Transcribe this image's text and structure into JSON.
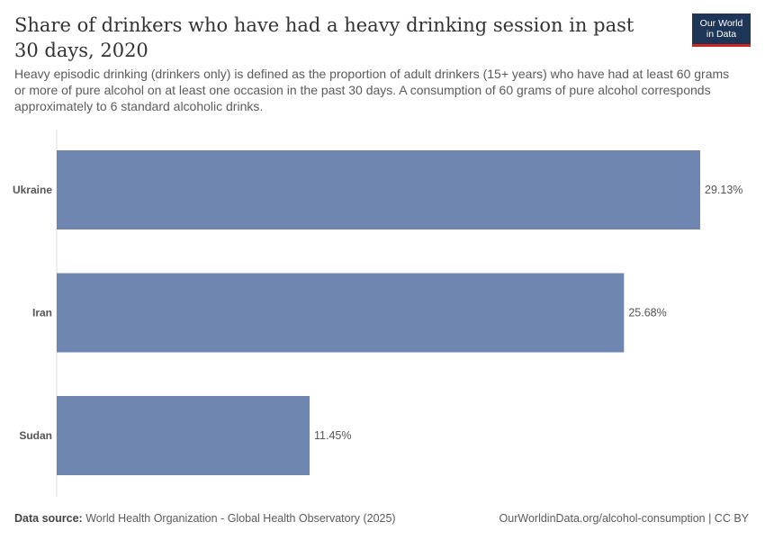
{
  "header": {
    "title": "Share of drinkers who have had a heavy drinking session in past 30 days, 2020",
    "subtitle": "Heavy episodic drinking (drinkers only) is defined as the proportion of adult drinkers (15+ years) who have had at least 60 grams or more of pure alcohol on at least one occasion in the past 30 days. A consumption of 60 grams of pure alcohol corresponds approximately to 6 standard alcoholic drinks.",
    "logo_line1": "Our World",
    "logo_line2": "in Data"
  },
  "footer": {
    "source_label": "Data source:",
    "source_text": "World Health Organization - Global Health Observatory (2025)",
    "url_text": "OurWorldinData.org/alcohol-consumption | CC BY"
  },
  "colors": {
    "bar": "#6f87b0",
    "axis": "#dddddd",
    "logo_bg": "#1d3557",
    "logo_accent": "#ce261e"
  },
  "chart_data": {
    "type": "bar",
    "orientation": "horizontal",
    "categories": [
      "Ukraine",
      "Iran",
      "Sudan"
    ],
    "values": [
      29.13,
      25.68,
      11.45
    ],
    "value_labels": [
      "29.13%",
      "25.68%",
      "11.45%"
    ],
    "unit": "%",
    "xlim": [
      0,
      29.13
    ],
    "grid": false,
    "legend": "none"
  }
}
